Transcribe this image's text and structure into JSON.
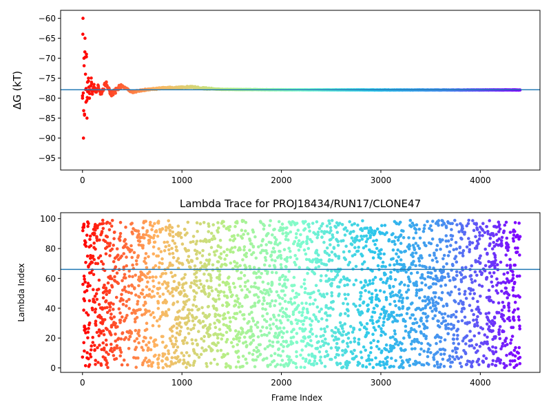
{
  "colors": {
    "hline": "#1f77b4",
    "axis": "#000000",
    "scatter_colormap": "rainbow",
    "colormap_stops": [
      "#ff0000",
      "#ffb360",
      "#b4f088",
      "#7ffccf",
      "#2cc6eb",
      "#4a8cf0",
      "#8000ff"
    ]
  },
  "chart_data": [
    {
      "type": "scatter",
      "title": "",
      "xlabel": "",
      "ylabel": "ΔG (kT)",
      "xlim": [
        -220,
        4600
      ],
      "ylim": [
        -98,
        -58
      ],
      "xticks": [
        0,
        1000,
        2000,
        3000,
        4000
      ],
      "xtick_labels": [
        "0",
        "1000",
        "2000",
        "3000",
        "4000"
      ],
      "yticks": [
        -60,
        -65,
        -70,
        -75,
        -80,
        -85,
        -90,
        -95
      ],
      "ytick_labels": [
        "−60",
        "−65",
        "−70",
        "−75",
        "−80",
        "−85",
        "−90",
        "−95"
      ],
      "hline": -77.9,
      "grid": false,
      "n_points": 4400,
      "series": [
        {
          "x": [
            0,
            5,
            10,
            15,
            20,
            25,
            30,
            35,
            40,
            45,
            50,
            55,
            60,
            65,
            70,
            80,
            90,
            100,
            110,
            120,
            140,
            160,
            180,
            200,
            240,
            280,
            320,
            360,
            400,
            500,
            600,
            800,
            1000,
            1100,
            1200,
            1400,
            2000,
            3000,
            4000,
            4400
          ],
          "y": [
            -80,
            -60,
            -90,
            -70,
            -84,
            -65,
            -74,
            -81,
            -69,
            -85,
            -76,
            -80,
            -75,
            -78,
            -80,
            -77,
            -76,
            -79,
            -78,
            -77.5,
            -78.5,
            -77,
            -79,
            -78,
            -76,
            -79,
            -78.5,
            -77.5,
            -77,
            -78.5,
            -78,
            -77.5,
            -77.3,
            -77.2,
            -77.5,
            -77.8,
            -77.9,
            -77.95,
            -77.95,
            -77.95
          ]
        }
      ]
    },
    {
      "type": "scatter",
      "title": "Lambda Trace for PROJ18434/RUN17/CLONE47",
      "xlabel": "Frame Index",
      "ylabel": "Lambda Index",
      "xlim": [
        -220,
        4600
      ],
      "ylim": [
        -3,
        104
      ],
      "xticks": [
        0,
        1000,
        2000,
        3000,
        4000
      ],
      "xtick_labels": [
        "0",
        "1000",
        "2000",
        "3000",
        "4000"
      ],
      "yticks": [
        0,
        20,
        40,
        60,
        80,
        100
      ],
      "ytick_labels": [
        "0",
        "20",
        "40",
        "60",
        "80",
        "100"
      ],
      "hline": 66,
      "grid": false,
      "n_points": 4400,
      "series": [
        {
          "x_range": [
            0,
            4400
          ],
          "y_range": [
            0,
            99
          ],
          "distribution": "uniform"
        }
      ]
    }
  ]
}
